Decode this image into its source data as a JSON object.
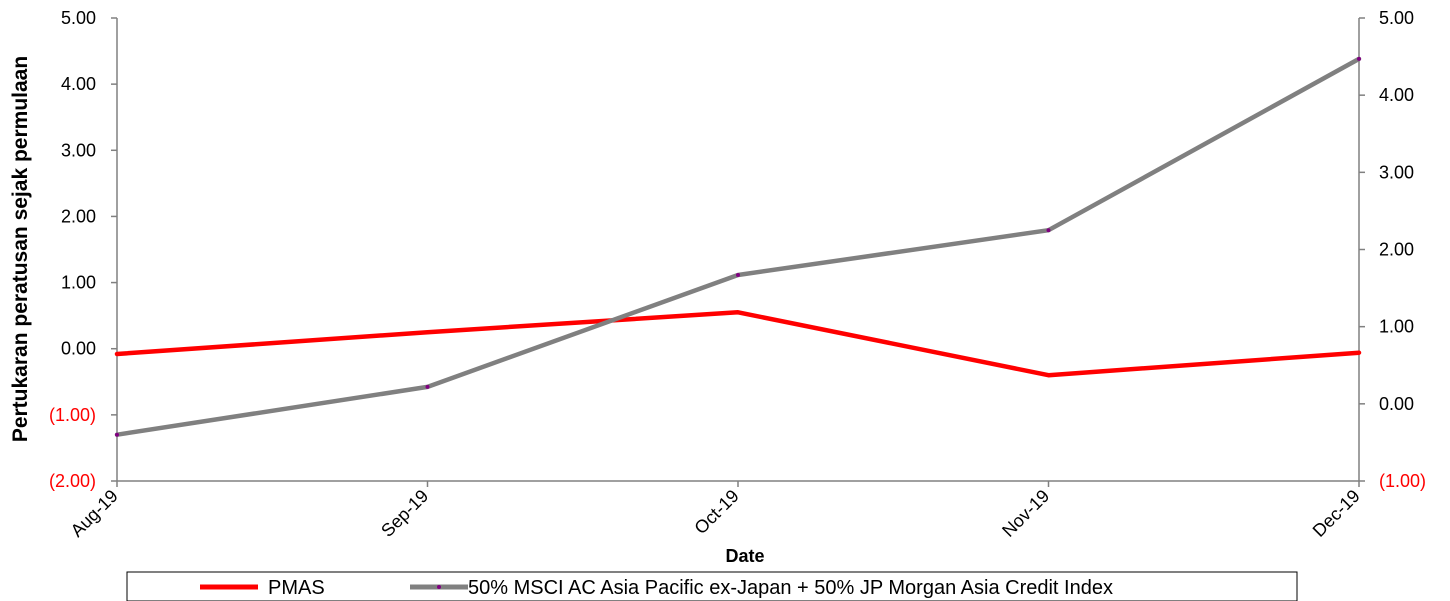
{
  "chart_data": {
    "type": "line",
    "categories": [
      "Aug-19",
      "Sep-19",
      "Oct-19",
      "Nov-19",
      "Dec-19"
    ],
    "xlabel": "Date",
    "ylabel": "Pertukaran peratusan sejak permulaan",
    "y_left": {
      "range": [
        -2,
        5
      ],
      "ticks": [
        5,
        4,
        3,
        2,
        1,
        0,
        -1,
        -2
      ],
      "tick_labels": [
        "5.00",
        "4.00",
        "3.00",
        "2.00",
        "1.00",
        "0.00",
        "(1.00)",
        "(2.00)"
      ]
    },
    "y_right": {
      "range": [
        -1,
        5
      ],
      "ticks": [
        5,
        4,
        3,
        2,
        1,
        0,
        -1
      ],
      "tick_labels": [
        "5.00",
        "4.00",
        "3.00",
        "2.00",
        "1.00",
        "0.00",
        "(1.00)"
      ]
    },
    "series": [
      {
        "name": "PMAS",
        "axis": "left",
        "color": "#ff0000",
        "values": [
          -0.08,
          0.25,
          0.55,
          -0.4,
          -0.06
        ]
      },
      {
        "name": "50% MSCI AC Asia Pacific ex-Japan + 50% JP Morgan Asia Credit Index",
        "axis": "right",
        "color": "#808080",
        "marker_color": "#800080",
        "values": [
          -0.4,
          0.22,
          1.67,
          2.25,
          4.47
        ]
      }
    ],
    "negative_tick_color": "#ff0000",
    "grid": false,
    "legend": "bottom"
  }
}
